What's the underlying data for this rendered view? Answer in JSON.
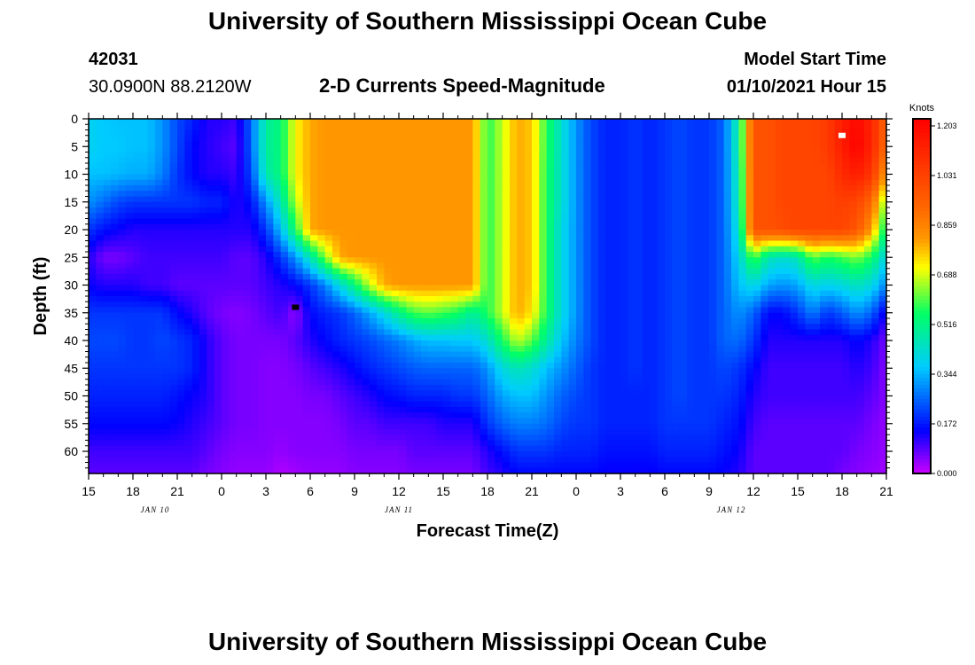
{
  "header": {
    "title": "University of Southern Mississippi Ocean Cube",
    "station_id": "42031",
    "station_coords": "30.0900N 88.2120W",
    "product": "2-D Currents Speed-Magnitude",
    "model_label": "Model Start Time",
    "model_time": "01/10/2021 Hour 15"
  },
  "footer": {
    "title": "University of Southern Mississippi Ocean Cube"
  },
  "chart_data": {
    "type": "heatmap",
    "title": "2-D Currents Speed-Magnitude",
    "xlabel": "Forecast Time(Z)",
    "ylabel": "Depth (ft)",
    "x_hours": [
      0,
      54
    ],
    "x_ticks": [
      "15",
      "18",
      "21",
      "0",
      "3",
      "6",
      "9",
      "12",
      "15",
      "18",
      "21",
      "0",
      "3",
      "6",
      "9",
      "12",
      "15",
      "18",
      "21"
    ],
    "date_labels": [
      {
        "label": "JAN 10",
        "hour": 4.5
      },
      {
        "label": "JAN 11",
        "hour": 21
      },
      {
        "label": "JAN 12",
        "hour": 43.5
      }
    ],
    "y_ticks": [
      0,
      5,
      10,
      15,
      20,
      25,
      30,
      35,
      40,
      45,
      50,
      55,
      60
    ],
    "ylim": [
      0,
      64
    ],
    "colorbar": {
      "label": "Knots",
      "ticks": [
        "1.203",
        "1.031",
        "0.859",
        "0.688",
        "0.516",
        "0.344",
        "0.172",
        "0.000"
      ],
      "min": 0,
      "max": 1.203
    },
    "markers": [
      {
        "name": "max-marker",
        "hour": 51,
        "depth": 3,
        "color": "#ffffff"
      },
      {
        "name": "min-marker",
        "hour": 14,
        "depth": 34,
        "color": "#000000"
      }
    ],
    "speed_grid_knots": {
      "hours": [
        0,
        1,
        2,
        3,
        4,
        5,
        6,
        7,
        8,
        9,
        10,
        11,
        12,
        13,
        14,
        15,
        16,
        17,
        18,
        19,
        20,
        21,
        22,
        23,
        24,
        25,
        26,
        27,
        28,
        29,
        30,
        31,
        32,
        33,
        34,
        35,
        36,
        37,
        38,
        39,
        40,
        41,
        42,
        43,
        44,
        45,
        46,
        47,
        48,
        49,
        50,
        51,
        52,
        53,
        54
      ],
      "depths": [
        0,
        5,
        10,
        15,
        20,
        25,
        30,
        35,
        40,
        45,
        50,
        55,
        60,
        64
      ],
      "values": [
        [
          0.38,
          0.36,
          0.35,
          0.35,
          0.35,
          0.3,
          0.22,
          0.18,
          0.12,
          0.12,
          0.1,
          0.25,
          0.48,
          0.52,
          0.7,
          0.78,
          0.8,
          0.8,
          0.8,
          0.8,
          0.8,
          0.8,
          0.8,
          0.8,
          0.8,
          0.8,
          0.8,
          0.56,
          0.66,
          0.78,
          0.75,
          0.56,
          0.42,
          0.3,
          0.22,
          0.18,
          0.18,
          0.2,
          0.18,
          0.2,
          0.22,
          0.2,
          0.2,
          0.25,
          0.48,
          0.96,
          0.96,
          1.0,
          1.0,
          1.0,
          1.03,
          1.12,
          1.18,
          1.1,
          0.9
        ],
        [
          0.38,
          0.36,
          0.36,
          0.35,
          0.35,
          0.3,
          0.22,
          0.15,
          0.12,
          0.1,
          0.08,
          0.25,
          0.48,
          0.52,
          0.7,
          0.78,
          0.8,
          0.8,
          0.8,
          0.8,
          0.8,
          0.8,
          0.8,
          0.8,
          0.8,
          0.8,
          0.8,
          0.56,
          0.66,
          0.78,
          0.75,
          0.56,
          0.42,
          0.3,
          0.22,
          0.18,
          0.18,
          0.2,
          0.18,
          0.2,
          0.22,
          0.2,
          0.2,
          0.25,
          0.48,
          0.96,
          0.96,
          1.0,
          1.0,
          1.0,
          1.03,
          1.12,
          1.2,
          1.1,
          0.88
        ],
        [
          0.35,
          0.35,
          0.34,
          0.33,
          0.33,
          0.28,
          0.2,
          0.15,
          0.12,
          0.12,
          0.1,
          0.22,
          0.46,
          0.52,
          0.7,
          0.78,
          0.8,
          0.8,
          0.8,
          0.8,
          0.8,
          0.8,
          0.8,
          0.8,
          0.8,
          0.8,
          0.8,
          0.56,
          0.66,
          0.78,
          0.75,
          0.55,
          0.42,
          0.3,
          0.22,
          0.18,
          0.18,
          0.2,
          0.18,
          0.2,
          0.22,
          0.2,
          0.2,
          0.25,
          0.46,
          0.96,
          0.96,
          1.0,
          1.0,
          1.0,
          1.0,
          1.08,
          1.12,
          1.05,
          0.78
        ],
        [
          0.3,
          0.26,
          0.22,
          0.2,
          0.2,
          0.2,
          0.2,
          0.2,
          0.18,
          0.18,
          0.12,
          0.16,
          0.3,
          0.45,
          0.65,
          0.78,
          0.8,
          0.8,
          0.8,
          0.8,
          0.8,
          0.8,
          0.8,
          0.8,
          0.8,
          0.8,
          0.8,
          0.56,
          0.66,
          0.78,
          0.75,
          0.55,
          0.42,
          0.3,
          0.22,
          0.18,
          0.18,
          0.2,
          0.18,
          0.2,
          0.22,
          0.2,
          0.2,
          0.25,
          0.45,
          0.96,
          0.96,
          1.0,
          1.0,
          1.0,
          1.0,
          1.02,
          1.0,
          0.9,
          0.6
        ],
        [
          0.2,
          0.16,
          0.14,
          0.12,
          0.12,
          0.12,
          0.12,
          0.12,
          0.12,
          0.12,
          0.12,
          0.12,
          0.2,
          0.35,
          0.55,
          0.78,
          0.8,
          0.8,
          0.8,
          0.8,
          0.8,
          0.8,
          0.8,
          0.8,
          0.8,
          0.8,
          0.8,
          0.56,
          0.66,
          0.78,
          0.75,
          0.55,
          0.4,
          0.3,
          0.22,
          0.18,
          0.18,
          0.2,
          0.18,
          0.2,
          0.22,
          0.2,
          0.2,
          0.25,
          0.42,
          0.96,
          0.96,
          0.98,
          1.0,
          1.0,
          1.0,
          1.0,
          0.95,
          0.8,
          0.5
        ],
        [
          0.12,
          0.06,
          0.06,
          0.08,
          0.1,
          0.1,
          0.1,
          0.1,
          0.1,
          0.1,
          0.08,
          0.08,
          0.12,
          0.2,
          0.3,
          0.45,
          0.62,
          0.78,
          0.8,
          0.8,
          0.8,
          0.8,
          0.8,
          0.8,
          0.8,
          0.8,
          0.8,
          0.56,
          0.66,
          0.78,
          0.75,
          0.55,
          0.4,
          0.3,
          0.22,
          0.18,
          0.18,
          0.2,
          0.18,
          0.2,
          0.22,
          0.2,
          0.2,
          0.25,
          0.38,
          0.6,
          0.45,
          0.42,
          0.45,
          0.6,
          0.55,
          0.58,
          0.62,
          0.55,
          0.38
        ],
        [
          0.14,
          0.12,
          0.12,
          0.12,
          0.1,
          0.1,
          0.08,
          0.08,
          0.08,
          0.08,
          0.08,
          0.08,
          0.1,
          0.12,
          0.15,
          0.2,
          0.28,
          0.4,
          0.52,
          0.66,
          0.78,
          0.8,
          0.8,
          0.8,
          0.8,
          0.8,
          0.8,
          0.56,
          0.66,
          0.78,
          0.75,
          0.55,
          0.4,
          0.3,
          0.22,
          0.18,
          0.18,
          0.2,
          0.18,
          0.2,
          0.22,
          0.2,
          0.2,
          0.25,
          0.35,
          0.4,
          0.32,
          0.3,
          0.32,
          0.4,
          0.38,
          0.4,
          0.44,
          0.4,
          0.28
        ],
        [
          0.2,
          0.2,
          0.2,
          0.2,
          0.2,
          0.2,
          0.15,
          0.12,
          0.08,
          0.06,
          0.05,
          0.06,
          0.08,
          0.1,
          0.04,
          0.15,
          0.18,
          0.2,
          0.25,
          0.32,
          0.4,
          0.5,
          0.58,
          0.6,
          0.58,
          0.55,
          0.48,
          0.56,
          0.66,
          0.78,
          0.72,
          0.55,
          0.4,
          0.3,
          0.22,
          0.18,
          0.18,
          0.2,
          0.18,
          0.2,
          0.22,
          0.2,
          0.2,
          0.25,
          0.3,
          0.25,
          0.15,
          0.15,
          0.2,
          0.28,
          0.2,
          0.24,
          0.3,
          0.25,
          0.12
        ],
        [
          0.22,
          0.22,
          0.22,
          0.2,
          0.2,
          0.22,
          0.2,
          0.18,
          0.12,
          0.08,
          0.06,
          0.06,
          0.06,
          0.06,
          0.08,
          0.12,
          0.15,
          0.18,
          0.2,
          0.22,
          0.25,
          0.28,
          0.32,
          0.35,
          0.35,
          0.36,
          0.36,
          0.42,
          0.55,
          0.66,
          0.6,
          0.48,
          0.36,
          0.28,
          0.22,
          0.18,
          0.18,
          0.2,
          0.18,
          0.2,
          0.22,
          0.2,
          0.2,
          0.25,
          0.26,
          0.2,
          0.12,
          0.12,
          0.12,
          0.12,
          0.12,
          0.12,
          0.15,
          0.12,
          0.06
        ],
        [
          0.2,
          0.2,
          0.2,
          0.2,
          0.2,
          0.2,
          0.2,
          0.18,
          0.12,
          0.08,
          0.06,
          0.06,
          0.05,
          0.05,
          0.06,
          0.08,
          0.1,
          0.12,
          0.15,
          0.18,
          0.2,
          0.22,
          0.24,
          0.25,
          0.25,
          0.25,
          0.25,
          0.3,
          0.4,
          0.45,
          0.42,
          0.35,
          0.3,
          0.25,
          0.2,
          0.18,
          0.18,
          0.2,
          0.18,
          0.2,
          0.22,
          0.2,
          0.2,
          0.22,
          0.2,
          0.15,
          0.1,
          0.1,
          0.1,
          0.1,
          0.1,
          0.1,
          0.12,
          0.1,
          0.05
        ],
        [
          0.18,
          0.18,
          0.18,
          0.18,
          0.18,
          0.18,
          0.16,
          0.14,
          0.12,
          0.08,
          0.06,
          0.06,
          0.05,
          0.05,
          0.05,
          0.06,
          0.06,
          0.08,
          0.1,
          0.12,
          0.15,
          0.16,
          0.18,
          0.18,
          0.18,
          0.2,
          0.2,
          0.25,
          0.32,
          0.35,
          0.35,
          0.3,
          0.25,
          0.22,
          0.2,
          0.18,
          0.18,
          0.18,
          0.18,
          0.2,
          0.22,
          0.2,
          0.2,
          0.2,
          0.18,
          0.12,
          0.1,
          0.1,
          0.1,
          0.1,
          0.1,
          0.1,
          0.1,
          0.08,
          0.05
        ],
        [
          0.15,
          0.15,
          0.15,
          0.15,
          0.15,
          0.15,
          0.14,
          0.12,
          0.1,
          0.08,
          0.06,
          0.06,
          0.05,
          0.05,
          0.05,
          0.05,
          0.05,
          0.06,
          0.08,
          0.08,
          0.1,
          0.1,
          0.1,
          0.1,
          0.12,
          0.12,
          0.12,
          0.2,
          0.25,
          0.28,
          0.28,
          0.26,
          0.22,
          0.2,
          0.2,
          0.18,
          0.18,
          0.18,
          0.18,
          0.2,
          0.2,
          0.2,
          0.2,
          0.18,
          0.16,
          0.1,
          0.08,
          0.08,
          0.08,
          0.08,
          0.08,
          0.08,
          0.08,
          0.06,
          0.04
        ],
        [
          0.1,
          0.1,
          0.1,
          0.1,
          0.1,
          0.1,
          0.1,
          0.1,
          0.08,
          0.06,
          0.05,
          0.05,
          0.05,
          0.04,
          0.05,
          0.05,
          0.05,
          0.05,
          0.06,
          0.06,
          0.06,
          0.06,
          0.08,
          0.08,
          0.08,
          0.08,
          0.08,
          0.12,
          0.16,
          0.2,
          0.2,
          0.2,
          0.18,
          0.18,
          0.18,
          0.16,
          0.16,
          0.16,
          0.16,
          0.18,
          0.18,
          0.18,
          0.18,
          0.16,
          0.14,
          0.08,
          0.08,
          0.08,
          0.08,
          0.08,
          0.08,
          0.08,
          0.06,
          0.05,
          0.04
        ],
        [
          0.08,
          0.08,
          0.08,
          0.08,
          0.08,
          0.08,
          0.08,
          0.08,
          0.06,
          0.05,
          0.04,
          0.04,
          0.04,
          0.02,
          0.03,
          0.04,
          0.04,
          0.04,
          0.05,
          0.05,
          0.05,
          0.05,
          0.06,
          0.06,
          0.06,
          0.06,
          0.06,
          0.1,
          0.12,
          0.15,
          0.15,
          0.15,
          0.15,
          0.15,
          0.15,
          0.14,
          0.14,
          0.14,
          0.14,
          0.15,
          0.15,
          0.15,
          0.15,
          0.14,
          0.12,
          0.08,
          0.08,
          0.08,
          0.08,
          0.08,
          0.08,
          0.06,
          0.05,
          0.04,
          0.03
        ]
      ]
    }
  }
}
